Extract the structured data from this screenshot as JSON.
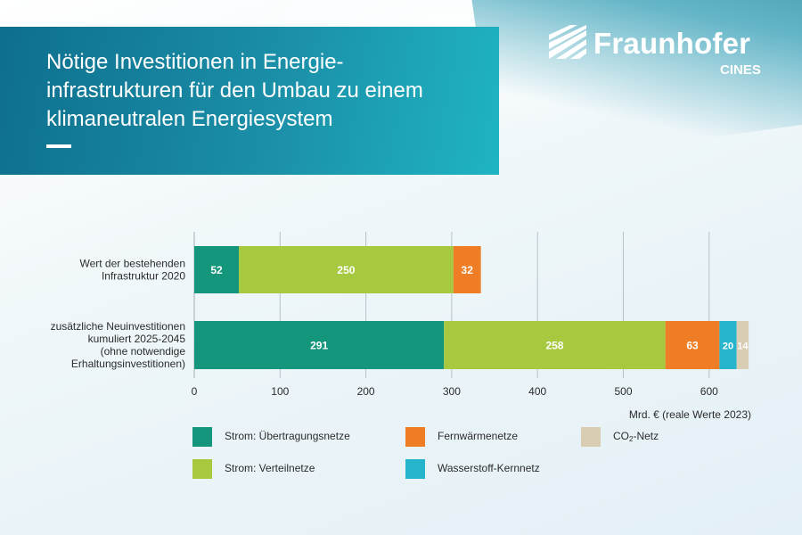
{
  "header": {
    "title": "Nötige Investitionen in Energie-\ninfrastrukturen für den Umbau zu einem\nklimaneutralen Energiesystem"
  },
  "logo": {
    "name": "Fraunhofer",
    "sub": "CINES"
  },
  "colors": {
    "uebertragung": "#13967b",
    "verteil": "#a7c93f",
    "fernwaerme": "#ee7d26",
    "wasserstoff": "#25b4cb",
    "co2": "#d8cdb3"
  },
  "chart_data": {
    "type": "bar",
    "orientation": "horizontal",
    "stacked": true,
    "categories": [
      "Wert der bestehenden\nInfrastruktur 2020",
      "zusätzliche Neuinvestitionen\nkumuliert 2025-2045\n(ohne notwendige\nErhaltungsinvestitionen)"
    ],
    "series": [
      {
        "name": "Strom: Übertragungsnetze",
        "values": [
          52,
          291
        ],
        "labels": [
          "52",
          "291"
        ]
      },
      {
        "name": "Strom: Verteilnetze",
        "values": [
          250,
          258
        ],
        "labels": [
          "250",
          "258"
        ]
      },
      {
        "name": "Fernwärmenetze",
        "values": [
          32,
          63
        ],
        "labels": [
          "32",
          "63"
        ]
      },
      {
        "name": "Wasserstoff-Kernnetz",
        "values": [
          0,
          20
        ],
        "labels": [
          "",
          "20"
        ]
      },
      {
        "name": "CO2-Netz",
        "values": [
          0,
          14
        ],
        "labels": [
          "",
          "14"
        ]
      }
    ],
    "xlim": [
      0,
      650
    ],
    "xticks": [
      0,
      100,
      200,
      300,
      400,
      500,
      600
    ],
    "xlabel": "Mrd. € (reale Werte 2023)",
    "grid": true,
    "legend": {
      "position": "bottom",
      "items": [
        {
          "label": "Strom: Übertragungsnetze",
          "color_key": "uebertragung"
        },
        {
          "label": "Strom: Verteilnetze",
          "color_key": "verteil"
        },
        {
          "label": "Fernwärmenetze",
          "color_key": "fernwaerme"
        },
        {
          "label": "Wasserstoff-Kernnetz",
          "color_key": "wasserstoff"
        },
        {
          "label_pre": "CO",
          "label_sub": "2",
          "label_post": "-Netz",
          "color_key": "co2"
        }
      ]
    }
  }
}
